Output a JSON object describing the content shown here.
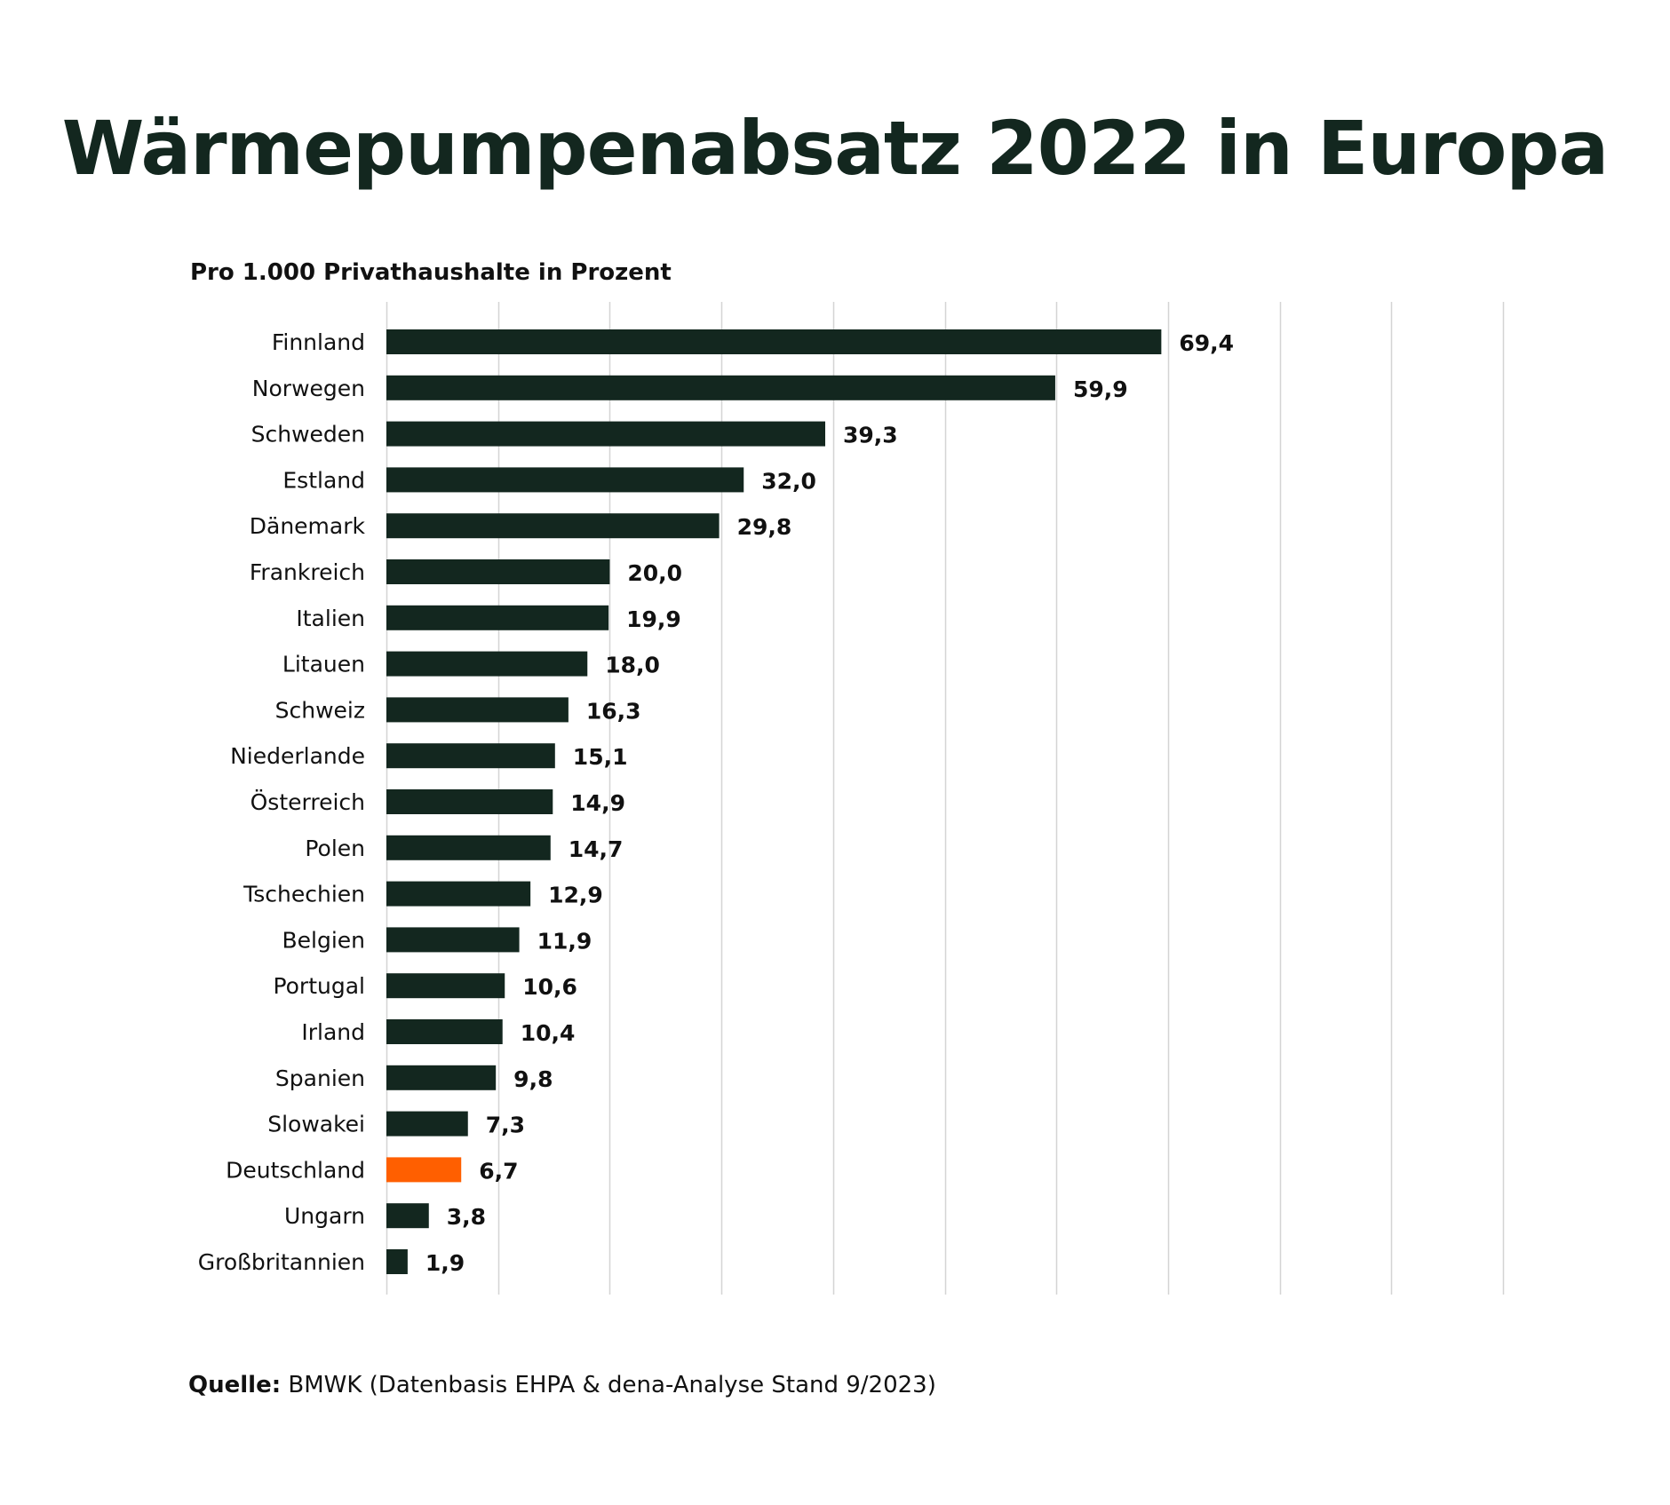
{
  "chart_data": {
    "type": "bar",
    "orientation": "horizontal",
    "title": "Wärmepumpenabsatz 2022 in Europa",
    "subtitle": "Pro 1.000 Privathaushalte in Prozent",
    "categories": [
      "Finnland",
      "Norwegen",
      "Schweden",
      "Estland",
      "Dänemark",
      "Frankreich",
      "Italien",
      "Litauen",
      "Schweiz",
      "Niederlande",
      "Österreich",
      "Polen",
      "Tschechien",
      "Belgien",
      "Portugal",
      "Irland",
      "Spanien",
      "Slowakei",
      "Deutschland",
      "Ungarn",
      "Großbritannien"
    ],
    "values": [
      69.4,
      59.9,
      39.3,
      32.0,
      29.8,
      20.0,
      19.9,
      18.0,
      16.3,
      15.1,
      14.9,
      14.7,
      12.9,
      11.9,
      10.6,
      10.4,
      9.8,
      7.3,
      6.7,
      3.8,
      1.9
    ],
    "value_labels": [
      "69,4",
      "59,9",
      "39,3",
      "32,0",
      "29,8",
      "20,0",
      "19,9",
      "18,0",
      "16,3",
      "15,1",
      "14,9",
      "14,7",
      "12,9",
      "11,9",
      "10,6",
      "10,4",
      "9,8",
      "7,3",
      "6,7",
      "3,8",
      "1,9"
    ],
    "highlight_category": "Deutschland",
    "xlim": [
      0,
      100
    ],
    "grid": true,
    "grid_step": 10,
    "tick_labels_shown": false,
    "colors": {
      "bar": "#13271f",
      "highlight": "#ff5f00",
      "grid": "#d4d4d4",
      "title": "#13271f"
    }
  },
  "source": {
    "label": "Quelle:",
    "text": "BMWK (Datenbasis EHPA & dena-Analyse Stand 9/2023)"
  }
}
